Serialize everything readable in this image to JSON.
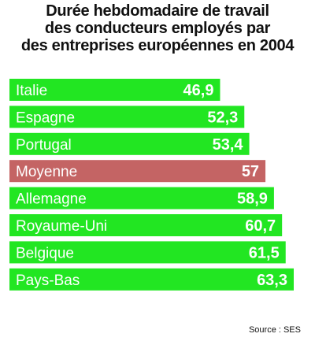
{
  "chart_data": {
    "type": "bar",
    "orientation": "horizontal",
    "title_lines": [
      "Durée hebdomadaire de travail",
      "des conducteurs employés par",
      "des entreprises européennes en 2004"
    ],
    "categories": [
      "Italie",
      "Espagne",
      "Portugal",
      "Moyenne",
      "Allemagne",
      "Royaume-Uni",
      "Belgique",
      "Pays-Bas"
    ],
    "values": [
      46.9,
      52.3,
      53.4,
      57,
      58.9,
      60.7,
      61.5,
      63.3
    ],
    "value_labels": [
      "46,9",
      "52,3",
      "53,4",
      "57",
      "58,9",
      "60,7",
      "61,5",
      "63,3"
    ],
    "highlight_category": "Moyenne",
    "colors": {
      "bar": "#22e622",
      "highlight": "#c46464",
      "text_on_bar": "#ffffff"
    },
    "xlim": [
      0,
      63.3
    ],
    "grid": false,
    "legend": "none",
    "source": "Source : SES"
  }
}
